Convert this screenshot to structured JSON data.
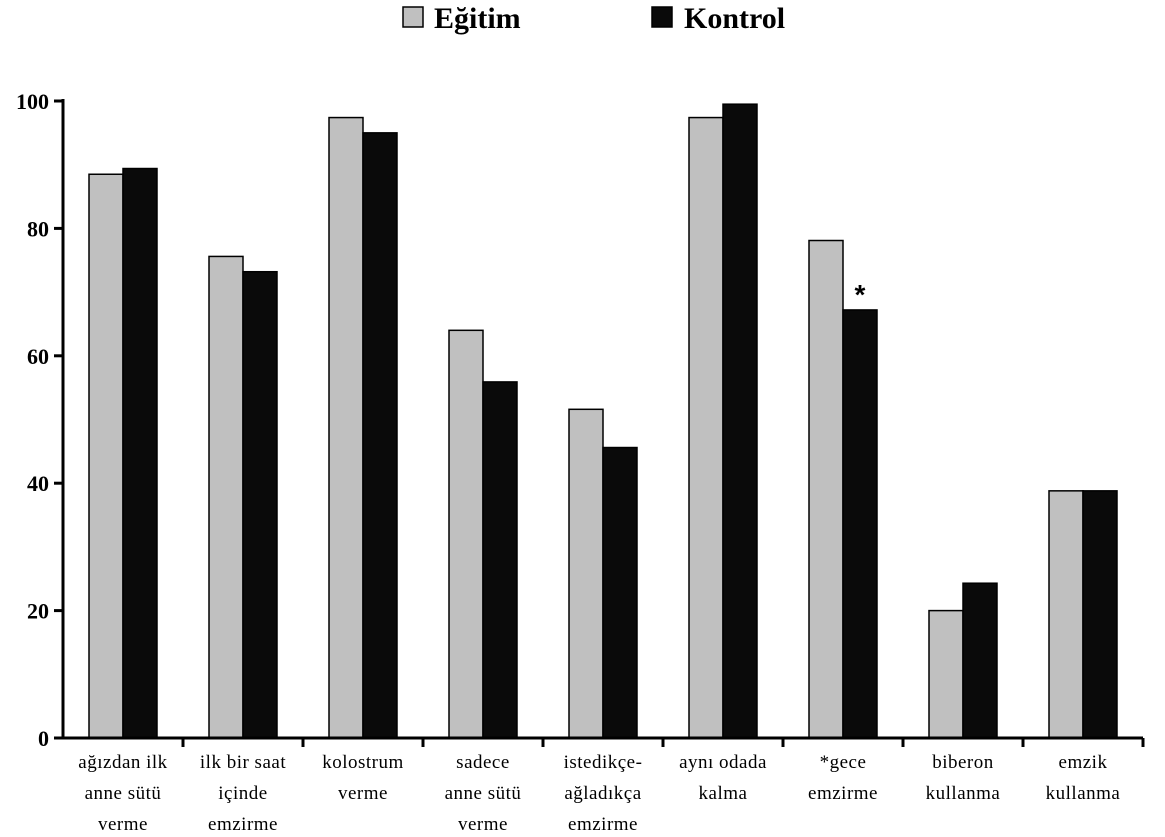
{
  "chart_data": {
    "type": "bar",
    "title": "",
    "xlabel": "",
    "ylabel": "",
    "ylim": [
      0,
      100
    ],
    "yticks": [
      0,
      20,
      40,
      60,
      80,
      100
    ],
    "ytick_labels": [
      "0",
      "20",
      "40",
      "60",
      "80",
      "100"
    ],
    "legend_position": "top-center",
    "grid": false,
    "categories": [
      [
        "ağızdan ilk",
        "anne sütü",
        "verme"
      ],
      [
        "ilk bir saat",
        "içinde",
        "emzirme"
      ],
      [
        "kolostrum",
        "verme"
      ],
      [
        "sadece",
        "anne sütü",
        "verme"
      ],
      [
        "istedikçe-",
        "ağladıkça",
        "emzirme"
      ],
      [
        "aynı odada",
        "kalma"
      ],
      [
        "*gece",
        "emzirme"
      ],
      [
        "biberon",
        "kullanma"
      ],
      [
        "emzik",
        "kullanma"
      ]
    ],
    "series": [
      {
        "name": "Eğitim",
        "color": "#c0c0c0",
        "values": [
          88.5,
          75.6,
          97.4,
          64.0,
          51.6,
          97.4,
          78.1,
          20.0,
          38.8
        ]
      },
      {
        "name": "Kontrol",
        "color": "#0a0a0a",
        "values": [
          89.4,
          73.2,
          95.0,
          55.9,
          45.6,
          99.5,
          67.2,
          24.3,
          38.8
        ]
      }
    ],
    "annotations": [
      {
        "text": "*",
        "category_index": 6,
        "series_index": 1
      }
    ]
  }
}
